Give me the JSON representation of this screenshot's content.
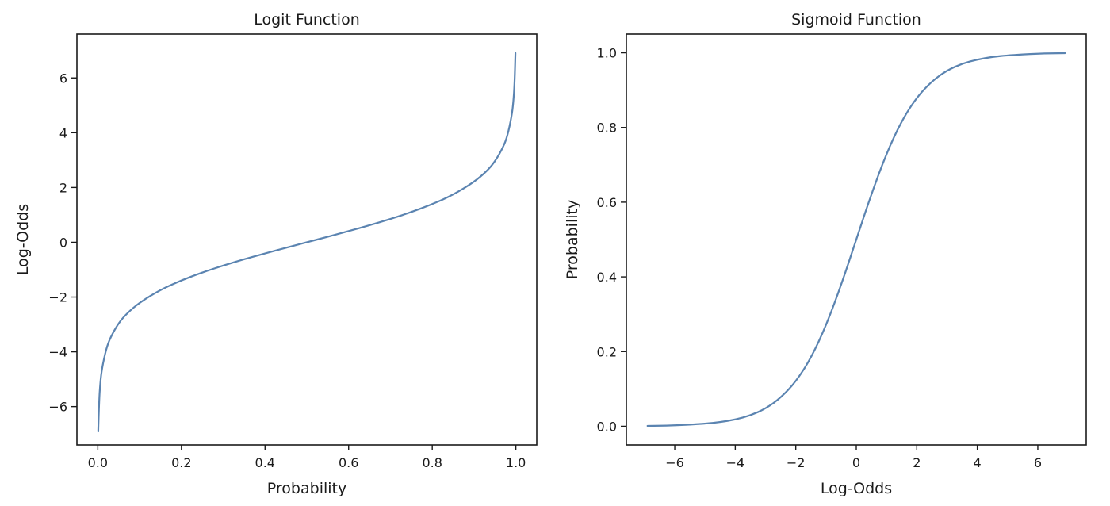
{
  "chart_data": [
    {
      "type": "line",
      "title": "Logit Function",
      "xlabel": "Probability",
      "ylabel": "Log-Odds",
      "xlim": [
        -0.05,
        1.05
      ],
      "ylim": [
        -7.4,
        7.6
      ],
      "xticks": [
        0.0,
        0.2,
        0.4,
        0.6,
        0.8,
        1.0
      ],
      "xtick_labels": [
        "0.0",
        "0.2",
        "0.4",
        "0.6",
        "0.8",
        "1.0"
      ],
      "yticks": [
        -6,
        -4,
        -2,
        0,
        2,
        4,
        6
      ],
      "ytick_labels": [
        "−6",
        "−4",
        "−2",
        "0",
        "2",
        "4",
        "6"
      ],
      "grid": false,
      "color": "#5b84b1",
      "series": [
        {
          "x": [
            0.001,
            0.003,
            0.006,
            0.01,
            0.02,
            0.03,
            0.05,
            0.07,
            0.1,
            0.15,
            0.2,
            0.25,
            0.3,
            0.35,
            0.4,
            0.45,
            0.5,
            0.55,
            0.6,
            0.65,
            0.7,
            0.75,
            0.8,
            0.85,
            0.9,
            0.93,
            0.95,
            0.97,
            0.98,
            0.99,
            0.994,
            0.997,
            0.999
          ],
          "y": [
            -6.91,
            -5.81,
            -5.11,
            -4.6,
            -3.89,
            -3.48,
            -2.94,
            -2.59,
            -2.2,
            -1.73,
            -1.39,
            -1.1,
            -0.85,
            -0.62,
            -0.41,
            -0.2,
            0.0,
            0.2,
            0.41,
            0.62,
            0.85,
            1.1,
            1.39,
            1.73,
            2.2,
            2.59,
            2.94,
            3.48,
            3.89,
            4.6,
            5.11,
            5.81,
            6.91
          ]
        }
      ]
    },
    {
      "type": "line",
      "title": "Sigmoid Function",
      "xlabel": "Log-Odds",
      "ylabel": "Probability",
      "xlim": [
        -7.6,
        7.6
      ],
      "ylim": [
        -0.05,
        1.05
      ],
      "xticks": [
        -6,
        -4,
        -2,
        0,
        2,
        4,
        6
      ],
      "xtick_labels": [
        "−6",
        "−4",
        "−2",
        "0",
        "2",
        "4",
        "6"
      ],
      "yticks": [
        0.0,
        0.2,
        0.4,
        0.6,
        0.8,
        1.0
      ],
      "ytick_labels": [
        "0.0",
        "0.2",
        "0.4",
        "0.6",
        "0.8",
        "1.0"
      ],
      "grid": false,
      "color": "#5b84b1",
      "series": [
        {
          "x": [
            -6.9,
            -6.0,
            -5.0,
            -4.5,
            -4.0,
            -3.5,
            -3.0,
            -2.5,
            -2.0,
            -1.5,
            -1.0,
            -0.5,
            0.0,
            0.5,
            1.0,
            1.5,
            2.0,
            2.5,
            3.0,
            3.5,
            4.0,
            4.5,
            5.0,
            6.0,
            6.9
          ],
          "y": [
            0.001,
            0.002,
            0.007,
            0.011,
            0.018,
            0.029,
            0.047,
            0.076,
            0.119,
            0.182,
            0.269,
            0.378,
            0.5,
            0.622,
            0.731,
            0.818,
            0.881,
            0.924,
            0.953,
            0.971,
            0.982,
            0.989,
            0.993,
            0.998,
            0.999
          ]
        }
      ]
    }
  ]
}
